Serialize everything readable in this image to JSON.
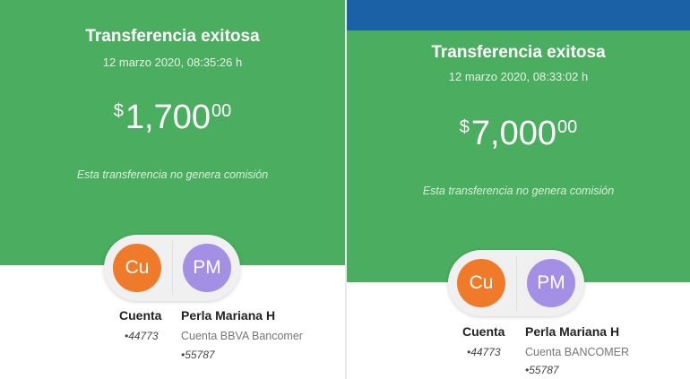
{
  "colors": {
    "green": "#4aad5f",
    "blue_bar": "#1a61a6",
    "origin_circle": "#ef7a2a",
    "dest_circle": "#a38fe4"
  },
  "receipts": [
    {
      "title": "Transferencia exitosa",
      "date": "12 marzo 2020, 08:35:26 h",
      "amount": {
        "currency": "$",
        "whole": "1,700",
        "cents": "00"
      },
      "note": "Esta transferencia no genera comisión",
      "origin": {
        "initials": "Cu",
        "name": "Cuenta",
        "number": "•44773"
      },
      "destination": {
        "initials": "PM",
        "name": "Perla Mariana H",
        "bank": "Cuenta BBVA Bancomer",
        "number": "•55787"
      }
    },
    {
      "title": "Transferencia exitosa",
      "date": "12 marzo 2020, 08:33:02 h",
      "amount": {
        "currency": "$",
        "whole": "7,000",
        "cents": "00"
      },
      "note": "Esta transferencia no genera comisión",
      "origin": {
        "initials": "Cu",
        "name": "Cuenta",
        "number": "•44773"
      },
      "destination": {
        "initials": "PM",
        "name": "Perla Mariana H",
        "bank": "Cuenta BANCOMER",
        "number": "•55787"
      }
    }
  ]
}
